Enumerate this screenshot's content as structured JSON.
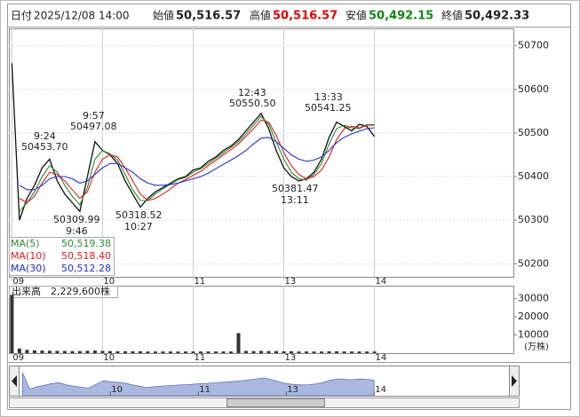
{
  "header": {
    "date_label": "日付",
    "date": "2025/12/08 14:00",
    "open_label": "始値",
    "open": "50,516.57",
    "high_label": "高値",
    "high": "50,516.57",
    "low_label": "安値",
    "low": "50,492.15",
    "close_label": "終値",
    "close": "50,492.33"
  },
  "chart_data": [
    {
      "type": "line",
      "series": [
        {
          "color": "#111111",
          "values": [
            50660,
            50300,
            50350,
            50380,
            50420,
            50440,
            50390,
            50360,
            50340,
            50320,
            50400,
            50480,
            50460,
            50450,
            50430,
            50390,
            50360,
            50330,
            50350,
            50365,
            50375,
            50385,
            50395,
            50400,
            50415,
            50420,
            50435,
            50445,
            50460,
            50470,
            50485,
            50505,
            50525,
            50545,
            50510,
            50460,
            50420,
            50400,
            50390,
            50395,
            50410,
            50440,
            50490,
            50525,
            50515,
            50505,
            50520,
            50515,
            50492
          ]
        },
        {
          "name": "MA(5)",
          "current": "50,519.38",
          "color": "#2e8b2e",
          "values": [
            null,
            50320,
            50340,
            50365,
            50400,
            50425,
            50410,
            50380,
            50355,
            50335,
            50375,
            50440,
            50460,
            50452,
            50438,
            50405,
            50370,
            50345,
            50345,
            50360,
            50372,
            50383,
            50393,
            50398,
            50410,
            50418,
            50430,
            50442,
            50455,
            50467,
            50480,
            50498,
            50518,
            50538,
            50520,
            50480,
            50440,
            50410,
            50395,
            50392,
            50405,
            50430,
            50475,
            50510,
            50518,
            50512,
            50510,
            50519,
            50519
          ]
        },
        {
          "name": "MA(10)",
          "current": "50,518.40",
          "color": "#e02020",
          "values": [
            null,
            50350,
            50340,
            50355,
            50385,
            50410,
            50405,
            50390,
            50370,
            50350,
            50365,
            50410,
            50440,
            50450,
            50445,
            50420,
            50390,
            50360,
            50345,
            50350,
            50360,
            50372,
            50385,
            50393,
            50403,
            50412,
            50425,
            50437,
            50450,
            50462,
            50475,
            50492,
            50510,
            50530,
            50525,
            50495,
            50455,
            50425,
            50405,
            50395,
            50400,
            50415,
            50445,
            50485,
            50510,
            50515,
            50512,
            50518,
            50518
          ]
        },
        {
          "name": "MA(30)",
          "current": "50,512.28",
          "color": "#2030d0",
          "values": [
            null,
            50380,
            50370,
            50370,
            50380,
            50395,
            50400,
            50400,
            50395,
            50385,
            50390,
            50405,
            50420,
            50430,
            50430,
            50420,
            50410,
            50395,
            50385,
            50380,
            50380,
            50382,
            50385,
            50390,
            50395,
            50400,
            50408,
            50418,
            50428,
            50438,
            50448,
            50460,
            50475,
            50488,
            50490,
            50480,
            50465,
            50450,
            50440,
            50435,
            50438,
            50445,
            50460,
            50478,
            50490,
            50498,
            50504,
            50510,
            50512
          ]
        }
      ],
      "xlim": [
        -0.4,
        66.4
      ],
      "xticks": [
        {
          "value": 0,
          "label": "09"
        },
        {
          "value": 12,
          "label": "10"
        },
        {
          "value": 24,
          "label": "11"
        },
        {
          "value": 36,
          "label": "13"
        },
        {
          "value": 48,
          "label": "14"
        }
      ],
      "ylim": [
        50170,
        50740
      ],
      "yticks": [
        50200,
        50300,
        50400,
        50500,
        50600,
        50700
      ],
      "grid": true,
      "annotations": [
        {
          "time": "9:24",
          "price": "50453.70"
        },
        {
          "time": "9:57",
          "price": "50497.08"
        },
        {
          "time": "9:46",
          "price": "50309.99"
        },
        {
          "time": "10:27",
          "price": "50318.52"
        },
        {
          "time": "12:43",
          "price": "50550.50"
        },
        {
          "time": "13:33",
          "price": "50541.25"
        },
        {
          "time": "13:11",
          "price": "50381.47"
        }
      ]
    },
    {
      "type": "bar",
      "title": "出来高",
      "total": "2,229,600株",
      "unit": "(万株)",
      "color": "#333333",
      "values": [
        32000,
        2500,
        1800,
        1500,
        1400,
        1300,
        1200,
        1200,
        1100,
        1100,
        1300,
        1400,
        1200,
        1100,
        1000,
        1000,
        1000,
        1000,
        900,
        900,
        900,
        900,
        900,
        900,
        900,
        900,
        900,
        900,
        900,
        900,
        11000,
        1200,
        1100,
        1200,
        1100,
        1100,
        1000,
        1000,
        900,
        900,
        900,
        900,
        1000,
        1000,
        900,
        900,
        900,
        900,
        900
      ],
      "xlim": [
        -0.4,
        66.4
      ],
      "xticks": [
        {
          "value": 0,
          "label": "09"
        },
        {
          "value": 12,
          "label": "10"
        },
        {
          "value": 24,
          "label": "11"
        },
        {
          "value": 36,
          "label": "13"
        },
        {
          "value": 48,
          "label": "14"
        }
      ],
      "ylim": [
        0,
        37000
      ],
      "yticks": [
        10000,
        20000,
        30000
      ]
    },
    {
      "type": "area",
      "color": "#aab8e0",
      "xlim": [
        -0.4,
        66.4
      ],
      "ylim": [
        50150,
        50800
      ],
      "xticks": [
        {
          "value": 12,
          "label": "10"
        },
        {
          "value": 24,
          "label": "11"
        },
        {
          "value": 36,
          "label": "13"
        },
        {
          "value": 48,
          "label": "14"
        }
      ]
    }
  ]
}
